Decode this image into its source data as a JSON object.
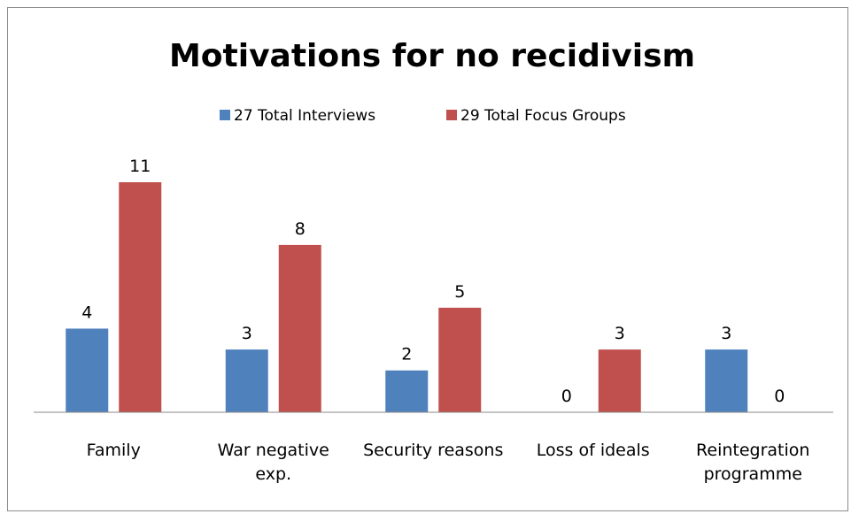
{
  "chart_data": {
    "type": "bar",
    "title": "Motivations for no recidivism",
    "categories": [
      [
        "Family"
      ],
      [
        "War negative",
        "exp."
      ],
      [
        "Security reasons"
      ],
      [
        "Loss of ideals"
      ],
      [
        "Reintegration",
        "programme"
      ]
    ],
    "series": [
      {
        "name": "27 Total  Interviews",
        "color": "#4f81bd",
        "values": [
          4,
          3,
          2,
          0,
          3
        ]
      },
      {
        "name": "29 Total  Focus Groups",
        "color": "#c0504d",
        "values": [
          11,
          8,
          5,
          3,
          0
        ]
      }
    ],
    "ylim": [
      0,
      11
    ],
    "grid": false,
    "data_labels": true,
    "legend_position": "top"
  }
}
